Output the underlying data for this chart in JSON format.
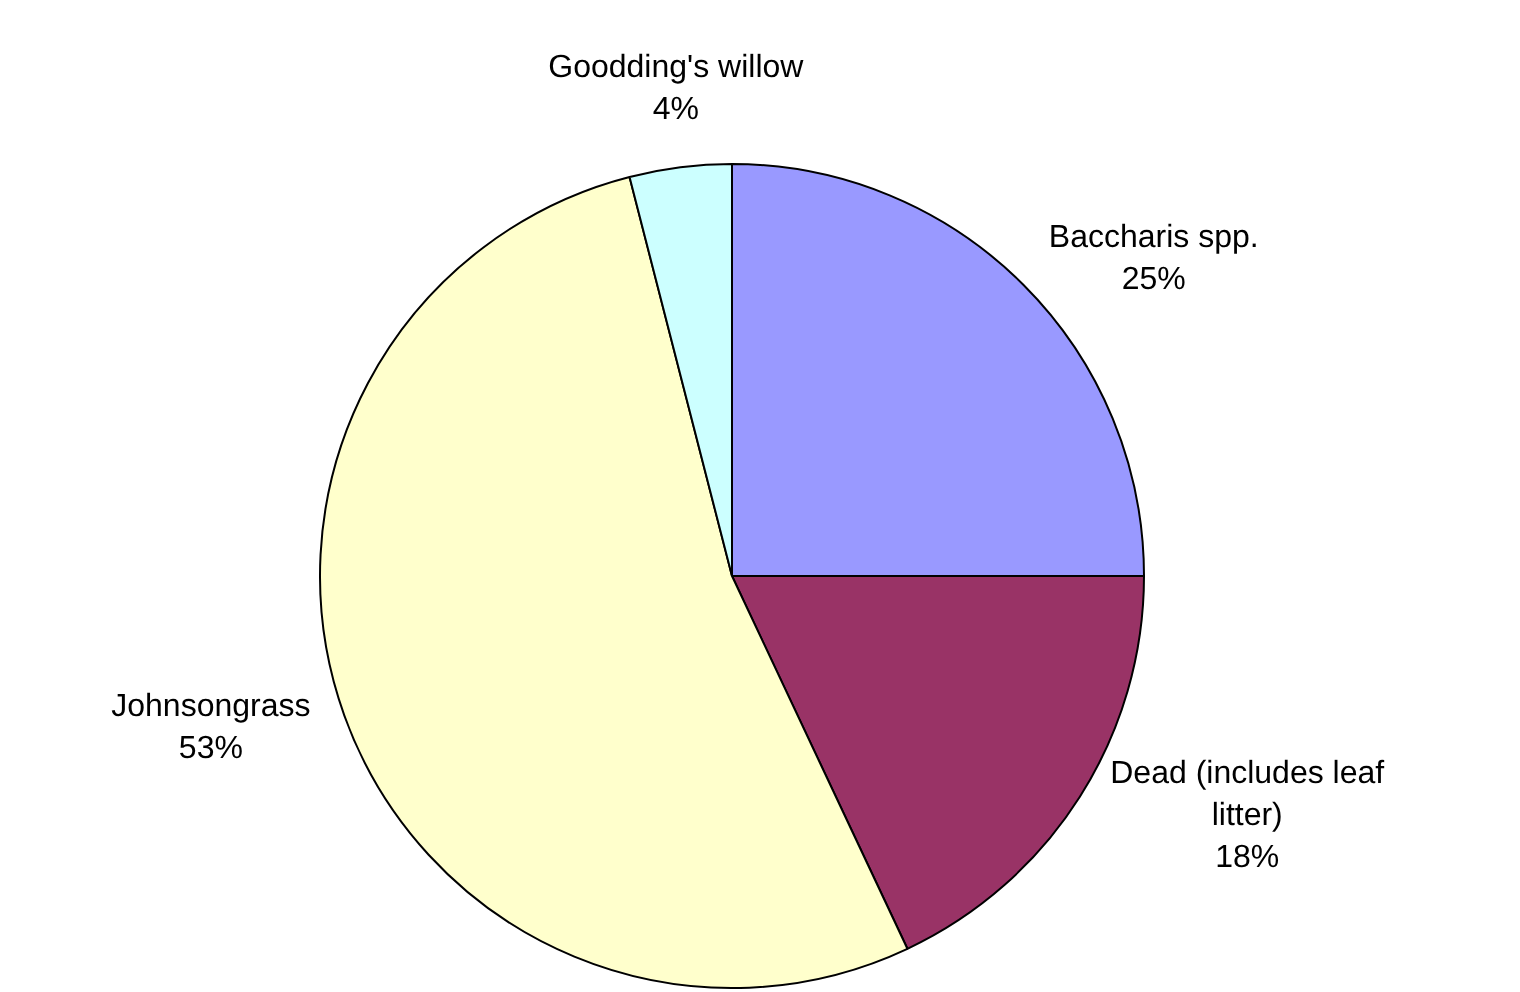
{
  "chart_data": {
    "type": "pie",
    "categories": [
      "Baccharis spp.",
      "Dead (includes leaf litter)",
      "Johnsongrass",
      "Goodding's willow"
    ],
    "values": [
      25,
      18,
      53,
      4
    ],
    "colors": [
      "#9999ff",
      "#993366",
      "#ffffcc",
      "#ccffff"
    ],
    "value_labels": [
      "25%",
      "18%",
      "53%",
      "4%"
    ],
    "legend": false
  }
}
